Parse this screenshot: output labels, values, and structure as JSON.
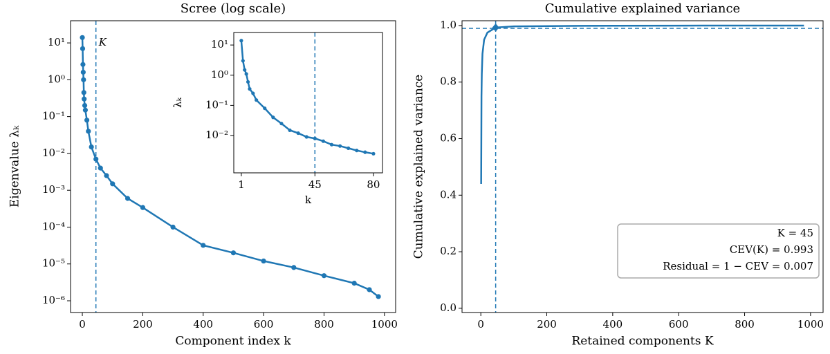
{
  "chart_data": [
    {
      "type": "line",
      "title": "Scree (log scale)",
      "x_label": "Component index k",
      "y_label": "Eigenvalue λₖ",
      "yscale": "log",
      "markers": true,
      "color": "#1f77b4",
      "xlim": [
        -39,
        1037
      ],
      "ylim": [
        4.8e-07,
        40
      ],
      "xticks": [
        0,
        200,
        400,
        600,
        800,
        1000
      ],
      "yticks": [
        {
          "value": 10,
          "label": "10¹"
        },
        {
          "value": 1,
          "label": "10⁰"
        },
        {
          "value": 0.1,
          "label": "10⁻¹"
        },
        {
          "value": 0.01,
          "label": "10⁻²"
        },
        {
          "value": 0.001,
          "label": "10⁻³"
        },
        {
          "value": 0.0001,
          "label": "10⁻⁴"
        },
        {
          "value": 1e-05,
          "label": "10⁻⁵"
        },
        {
          "value": 1e-06,
          "label": "10⁻⁶"
        }
      ],
      "x": [
        0,
        1,
        2,
        3,
        4,
        5,
        6,
        8,
        10,
        15,
        20,
        30,
        45,
        60,
        80,
        100,
        150,
        200,
        300,
        400,
        500,
        600,
        700,
        800,
        900,
        950,
        980
      ],
      "values": [
        14,
        7,
        2.6,
        1.6,
        1.0,
        0.45,
        0.3,
        0.2,
        0.15,
        0.08,
        0.04,
        0.015,
        0.007,
        0.004,
        0.0025,
        0.0015,
        0.0006,
        0.00034,
        0.0001,
        3.2e-05,
        2e-05,
        1.2e-05,
        8e-06,
        4.8e-06,
        3e-06,
        2e-06,
        1.3e-06
      ],
      "vline": 45,
      "vline_label": "K"
    },
    {
      "type": "line",
      "x_label": "k",
      "y_label": "λₖ",
      "yscale": "log",
      "markers": true,
      "color": "#1f77b4",
      "xlim": [
        -3.5,
        85.4
      ],
      "ylim": [
        0.00058,
        26
      ],
      "xticks": [
        1,
        45,
        80
      ],
      "yticks": [
        {
          "value": 10,
          "label": "10¹"
        },
        {
          "value": 1,
          "label": "10⁰"
        },
        {
          "value": 0.1,
          "label": "10⁻¹"
        },
        {
          "value": 0.01,
          "label": "10⁻²"
        }
      ],
      "x": [
        1,
        2,
        3,
        4,
        5,
        6,
        8,
        10,
        15,
        20,
        25,
        30,
        35,
        40,
        45,
        50,
        55,
        60,
        65,
        70,
        75,
        80
      ],
      "values": [
        14,
        3,
        1.5,
        1.1,
        0.6,
        0.35,
        0.25,
        0.15,
        0.08,
        0.04,
        0.025,
        0.015,
        0.012,
        0.009,
        0.008,
        0.0065,
        0.005,
        0.0045,
        0.0038,
        0.0032,
        0.0028,
        0.0025
      ],
      "vline": 45
    },
    {
      "type": "line",
      "title": "Cumulative explained variance",
      "x_label": "Retained components K",
      "y_label": "Cumulative explained variance",
      "markers": false,
      "color": "#1f77b4",
      "xlim": [
        -57,
        1038
      ],
      "ylim": [
        -0.015,
        1.017
      ],
      "xticks": [
        0,
        200,
        400,
        600,
        800,
        1000
      ],
      "yticks": [
        {
          "value": 0,
          "label": "0.0"
        },
        0.2,
        0.4,
        0.6,
        0.8,
        {
          "value": 1,
          "label": "1.0"
        }
      ],
      "x": [
        1,
        2,
        3,
        5,
        10,
        20,
        45,
        100,
        300,
        600,
        980
      ],
      "values": [
        0.44,
        0.75,
        0.83,
        0.9,
        0.95,
        0.975,
        0.993,
        0.997,
        0.999,
        0.9997,
        1.0
      ],
      "vline": 45,
      "hline": 0.99,
      "highlight": {
        "x": 45,
        "y": 0.993
      },
      "annotations": [
        "K = 45",
        "CEV(K) = 0.993",
        "Residual = 1 − CEV = 0.007"
      ]
    }
  ]
}
